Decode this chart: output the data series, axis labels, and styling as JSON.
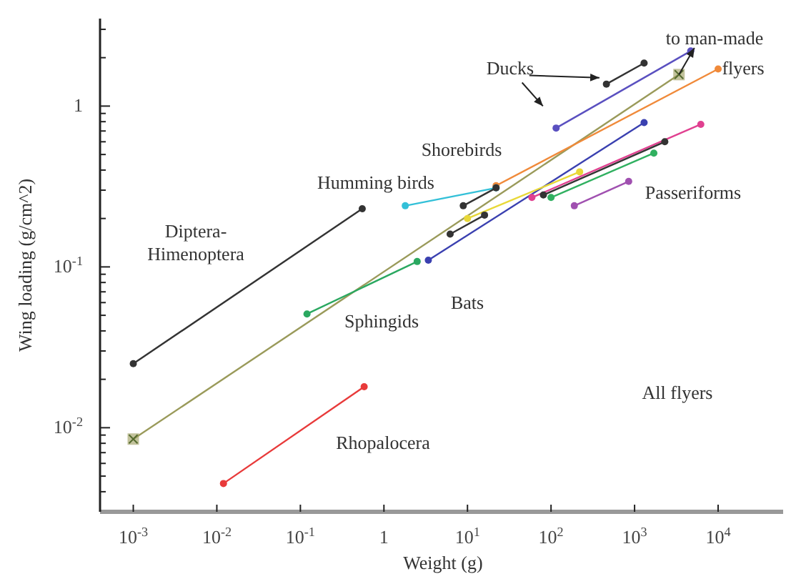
{
  "chart_data": {
    "type": "line",
    "xlabel": "Weight (g)",
    "ylabel": "Wing loading (g/cm^2)",
    "log": "xy",
    "marker": "circle",
    "line_style": "solid",
    "xlim": [
      0.0004,
      60000
    ],
    "ylim": [
      0.003,
      3.5
    ],
    "xticks": [
      {
        "value": 0.001,
        "label": "10$^{-3}$"
      },
      {
        "value": 0.01,
        "label": "10$^{-2}$"
      },
      {
        "value": 0.1,
        "label": "10$^{-1}$"
      },
      1,
      {
        "value": 10,
        "label": "10$^{1}$"
      },
      {
        "value": 100,
        "label": "10$^{2}$"
      },
      {
        "value": 1000,
        "label": "10$^{3}$"
      },
      {
        "value": 10000,
        "label": "10$^{4}$"
      }
    ],
    "yticks": [
      {
        "value": 0.004,
        "label": null
      },
      {
        "value": 0.005,
        "label": null
      },
      {
        "value": 0.006,
        "label": null
      },
      {
        "value": 0.007,
        "label": null
      },
      {
        "value": 0.008,
        "label": null
      },
      {
        "value": 0.009,
        "label": null
      },
      {
        "value": 0.01,
        "label": "10$^{-2}$"
      },
      {
        "value": 0.02,
        "label": null
      },
      {
        "value": 0.03,
        "label": null
      },
      {
        "value": 0.04,
        "label": null
      },
      {
        "value": 0.05,
        "label": null
      },
      {
        "value": 0.06,
        "label": null
      },
      {
        "value": 0.07,
        "label": null
      },
      {
        "value": 0.08,
        "label": null
      },
      {
        "value": 0.09,
        "label": null
      },
      {
        "value": 0.1,
        "label": "10$^{-1}$"
      },
      {
        "value": 0.2,
        "label": null
      },
      {
        "value": 0.3,
        "label": null
      },
      {
        "value": 0.4,
        "label": null
      },
      {
        "value": 0.5,
        "label": null
      },
      {
        "value": 0.6,
        "label": null
      },
      {
        "value": 0.7,
        "label": null
      },
      {
        "value": 0.8,
        "label": null
      },
      {
        "value": 0.9,
        "label": null
      },
      1,
      {
        "value": 2,
        "label": null
      },
      {
        "value": 3,
        "label": null
      }
    ],
    "series": [
      {
        "color": "#333333",
        "x": [
          0.001,
          0.55
        ],
        "values": [
          0.025,
          0.23
        ]
      },
      {
        "color": "#9a9a5a",
        "x": [
          0.001,
          3400
        ],
        "values": [
          0.0085,
          1.57
        ],
        "marker": "square"
      },
      {
        "color": "#f08a3a",
        "x": [
          22,
          10000
        ],
        "values": [
          0.32,
          1.7
        ]
      },
      {
        "color": "#33c0d8",
        "x": [
          1.8,
          22
        ],
        "values": [
          0.24,
          0.31
        ]
      },
      {
        "color": "#2aa860",
        "x": [
          0.12,
          2.5
        ],
        "values": [
          0.051,
          0.108
        ]
      },
      {
        "color": "#e83a3a",
        "x": [
          0.012,
          0.58
        ],
        "values": [
          0.0045,
          0.018
        ]
      },
      {
        "color": "#3a40b0",
        "x": [
          3.4,
          1300
        ],
        "values": [
          0.11,
          0.79
        ]
      },
      {
        "color": "#5a50c0",
        "x": [
          115,
          4700
        ],
        "values": [
          0.73,
          2.2
        ]
      },
      {
        "color": "#333333",
        "x": [
          460,
          1300
        ],
        "values": [
          1.37,
          1.85
        ]
      },
      {
        "color": "#333333",
        "x": [
          8.9,
          22
        ],
        "values": [
          0.24,
          0.31
        ]
      },
      {
        "color": "#e8d838",
        "x": [
          10,
          220
        ],
        "values": [
          0.2,
          0.39
        ]
      },
      {
        "color": "#333333",
        "x": [
          6.2,
          16
        ],
        "values": [
          0.16,
          0.21
        ]
      },
      {
        "color": "#e04090",
        "x": [
          59,
          6200
        ],
        "values": [
          0.27,
          0.77
        ]
      },
      {
        "color": "#333333",
        "x": [
          81,
          2300
        ],
        "values": [
          0.28,
          0.6
        ]
      },
      {
        "color": "#30b060",
        "x": [
          100,
          1700
        ],
        "values": [
          0.27,
          0.51
        ]
      },
      {
        "color": "#a050b0",
        "x": [
          190,
          850
        ],
        "values": [
          0.24,
          0.34
        ]
      }
    ],
    "annotations": [
      "Diptera- Himenoptera",
      "Humming birds",
      "Shorebirds",
      "Ducks",
      "to man-made",
      "flyers",
      "Passeriforms",
      "Bats",
      "Sphingids",
      "Rhopalocera",
      "All flyers"
    ]
  }
}
